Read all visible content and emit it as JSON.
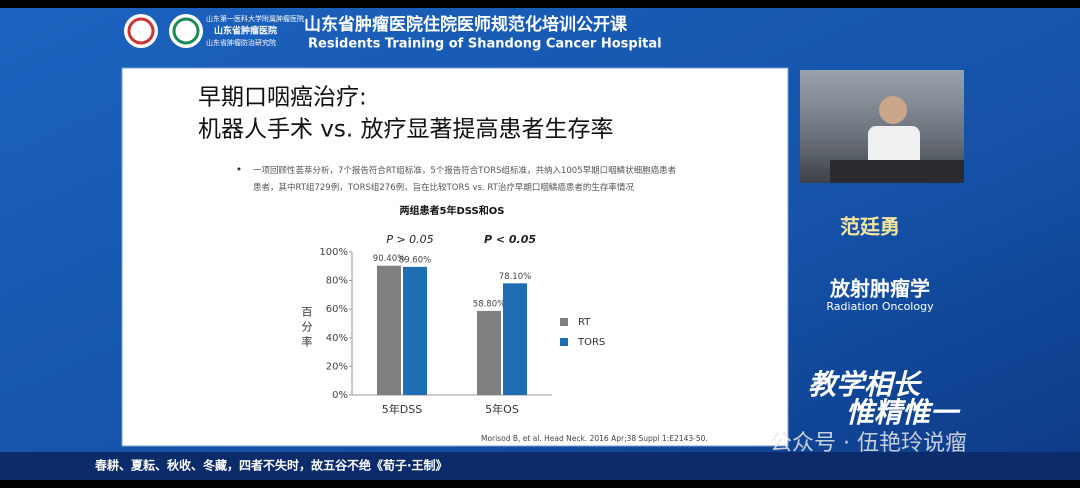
{
  "header": {
    "logo_lines": [
      "山东第一医科大学附属肿瘤医院",
      "山东省肿瘤医院",
      "山东省肿瘤防治研究院"
    ],
    "title": "山东省肿瘤医院住院医师规范化培训公开课",
    "subtitle": "Residents Training of Shandong Cancer Hospital"
  },
  "slide": {
    "title_lines": [
      "早期口咽癌治疗:",
      "机器人手术 vs. 放疗显著提高患者生存率"
    ],
    "bullet": "一项回顾性荟萃分析，7个报告符合RT组标准，5个报告符合TORS组标准，共纳入1005早期口咽鳞状细胞癌患者患者，其中RT组729例，TORS组276例，旨在比较TORS vs. RT治疗早期口咽鳞癌患者的生存率情况",
    "citation": "Morisod B, et al. Head Neck. 2016 Apr;38 Suppl 1:E2143-50."
  },
  "speaker": {
    "name": "范廷勇",
    "department": "放射肿瘤学",
    "department_en": "Radiation Oncology"
  },
  "slogan": [
    "教学相长",
    "惟精惟一"
  ],
  "ticker": "春耕、夏耘、秋收、冬藏，四者不失时，故五谷不绝《荀子·王制》",
  "watermark": "公众号 · 伍艳玲说瘤",
  "chart_data": {
    "type": "bar",
    "title": "两组患者5年DSS和OS",
    "y_label": "百分率",
    "categories": [
      "5年DSS",
      "5年OS"
    ],
    "series": [
      {
        "name": "RT",
        "color": "#808080",
        "values": [
          90.4,
          58.8
        ],
        "value_labels": [
          "90.40%",
          "58.80%"
        ]
      },
      {
        "name": "TORS",
        "color": "#1f6db3",
        "values": [
          89.6,
          78.1
        ],
        "value_labels": [
          "89.60%",
          "78.10%"
        ]
      }
    ],
    "annotations": [
      "P > 0.05",
      "P < 0.05"
    ],
    "ylim": [
      0,
      100
    ],
    "yticks": [
      {
        "value": 0,
        "label": "0%"
      },
      {
        "value": 20,
        "label": "20%"
      },
      {
        "value": 40,
        "label": "40%"
      },
      {
        "value": 60,
        "label": "60%"
      },
      {
        "value": 80,
        "label": "80%"
      },
      {
        "value": 100,
        "label": "100%"
      }
    ],
    "grid": false
  }
}
